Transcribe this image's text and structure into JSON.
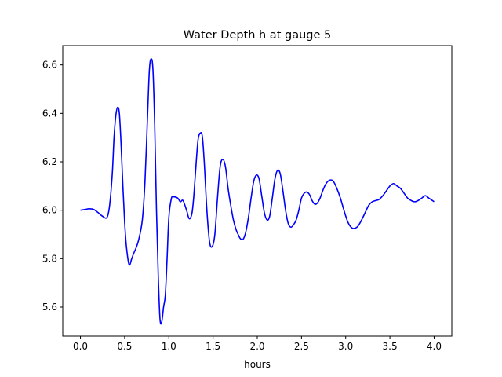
{
  "chart_data": {
    "type": "line",
    "title": "Water Depth h at gauge 5",
    "xlabel": "hours",
    "ylabel": "",
    "xlim": [
      -0.2,
      4.2
    ],
    "ylim": [
      5.48,
      6.68
    ],
    "xticks": [
      0.0,
      0.5,
      1.0,
      1.5,
      2.0,
      2.5,
      3.0,
      3.5,
      4.0
    ],
    "xtick_labels": [
      "0.0",
      "0.5",
      "1.0",
      "1.5",
      "2.0",
      "2.5",
      "3.0",
      "3.5",
      "4.0"
    ],
    "yticks": [
      5.6,
      5.8,
      6.0,
      6.2,
      6.4,
      6.6
    ],
    "ytick_labels": [
      "5.6",
      "5.8",
      "6.0",
      "6.2",
      "6.4",
      "6.6"
    ],
    "grid": false,
    "legend": "none",
    "series": [
      {
        "color": "#0000ff",
        "x": [
          0.0,
          0.05,
          0.1,
          0.15,
          0.2,
          0.25,
          0.3,
          0.33,
          0.36,
          0.38,
          0.4,
          0.42,
          0.44,
          0.46,
          0.48,
          0.5,
          0.52,
          0.55,
          0.58,
          0.6,
          0.63,
          0.66,
          0.7,
          0.73,
          0.76,
          0.78,
          0.8,
          0.82,
          0.84,
          0.86,
          0.88,
          0.9,
          0.92,
          0.94,
          0.96,
          0.98,
          1.0,
          1.03,
          1.06,
          1.1,
          1.13,
          1.16,
          1.2,
          1.23,
          1.26,
          1.28,
          1.3,
          1.33,
          1.36,
          1.38,
          1.4,
          1.43,
          1.46,
          1.49,
          1.52,
          1.55,
          1.58,
          1.61,
          1.64,
          1.67,
          1.7,
          1.73,
          1.76,
          1.79,
          1.81,
          1.84,
          1.87,
          1.9,
          1.93,
          1.96,
          1.99,
          2.02,
          2.05,
          2.08,
          2.11,
          2.14,
          2.17,
          2.2,
          2.23,
          2.26,
          2.29,
          2.32,
          2.35,
          2.38,
          2.41,
          2.44,
          2.47,
          2.5,
          2.53,
          2.56,
          2.59,
          2.62,
          2.65,
          2.68,
          2.71,
          2.74,
          2.77,
          2.8,
          2.83,
          2.86,
          2.9,
          2.94,
          2.98,
          3.02,
          3.06,
          3.1,
          3.14,
          3.18,
          3.22,
          3.26,
          3.3,
          3.34,
          3.38,
          3.42,
          3.46,
          3.5,
          3.54,
          3.58,
          3.62,
          3.66,
          3.7,
          3.74,
          3.78,
          3.82,
          3.86,
          3.9,
          3.94,
          3.98,
          4.0
        ],
        "y": [
          6.0,
          6.003,
          6.006,
          6.003,
          5.99,
          5.975,
          5.97,
          6.02,
          6.15,
          6.3,
          6.39,
          6.425,
          6.4,
          6.27,
          6.1,
          5.95,
          5.85,
          5.775,
          5.8,
          5.82,
          5.845,
          5.88,
          5.96,
          6.12,
          6.4,
          6.58,
          6.625,
          6.58,
          6.35,
          6.0,
          5.73,
          5.55,
          5.54,
          5.6,
          5.65,
          5.8,
          5.97,
          6.05,
          6.055,
          6.05,
          6.035,
          6.04,
          6.0,
          5.965,
          5.985,
          6.05,
          6.15,
          6.29,
          6.32,
          6.3,
          6.2,
          6.0,
          5.87,
          5.85,
          5.9,
          6.05,
          6.18,
          6.21,
          6.18,
          6.09,
          6.02,
          5.96,
          5.92,
          5.895,
          5.882,
          5.88,
          5.91,
          5.97,
          6.05,
          6.12,
          6.145,
          6.13,
          6.06,
          5.99,
          5.96,
          5.975,
          6.05,
          6.13,
          6.165,
          6.15,
          6.08,
          6.0,
          5.945,
          5.93,
          5.94,
          5.96,
          6.0,
          6.05,
          6.07,
          6.075,
          6.065,
          6.04,
          6.025,
          6.03,
          6.05,
          6.08,
          6.105,
          6.12,
          6.125,
          6.12,
          6.09,
          6.05,
          6.0,
          5.955,
          5.93,
          5.925,
          5.935,
          5.96,
          5.99,
          6.02,
          6.035,
          6.04,
          6.045,
          6.06,
          6.08,
          6.1,
          6.11,
          6.1,
          6.09,
          6.07,
          6.05,
          6.04,
          6.035,
          6.04,
          6.05,
          6.06,
          6.05,
          6.04,
          6.035
        ]
      }
    ]
  }
}
